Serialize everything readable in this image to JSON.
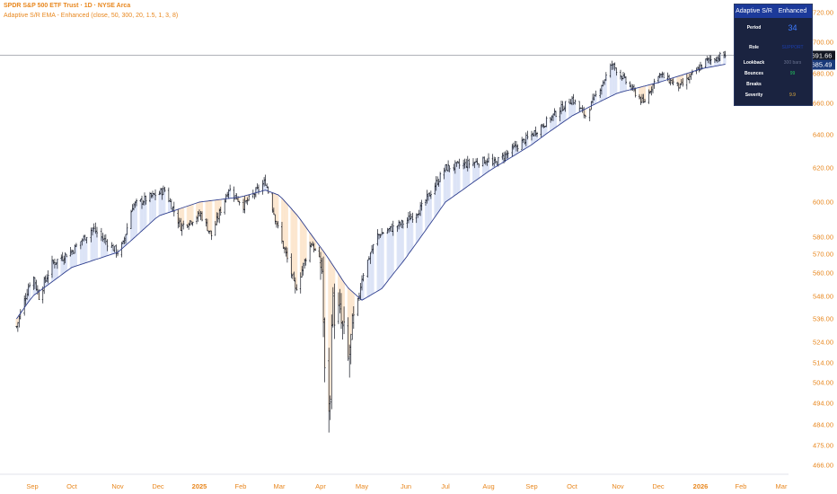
{
  "header": {
    "title": "SPDR S&P 500 ETF Trust · 1D · NYSE Arca",
    "indicator": "Adaptive S/R EMA - Enhanced (close, 50, 300, 20, 1.5, 1, 3, 8)"
  },
  "y_axis_labels": [
    "720.00",
    "700.00",
    "680.00",
    "660.00",
    "640.00",
    "620.00",
    "600.00",
    "580.00",
    "570.00",
    "560.00",
    "548.00",
    "536.00",
    "524.00",
    "514.00",
    "504.00",
    "494.00",
    "484.00",
    "475.00",
    "466.00"
  ],
  "price_tags": {
    "last": "691.66",
    "ema": "685.49"
  },
  "panel": {
    "title": "Adaptive S/R",
    "mode": "Enhanced",
    "rows": {
      "period": {
        "label": "Period",
        "value": "34"
      },
      "role": {
        "label": "Role",
        "value": "SUPPORT"
      },
      "lookback": {
        "label": "Lookback",
        "value": "300 bars"
      },
      "bounces": {
        "label": "Bounces",
        "value": "99"
      },
      "breaks": {
        "label": "Breaks",
        "value": ""
      },
      "severity": {
        "label": "Severity",
        "value": "9.9"
      }
    }
  },
  "colors": {
    "axis_text": "#e8871e",
    "ema_line": "#2f3f8f",
    "fill_support": "#d6dff5",
    "fill_resistance": "#fbe2c7",
    "bars": "#131722",
    "panel_bg": "#1a2340",
    "panel_header": "#1c3a9a"
  },
  "chart_data": {
    "type": "line",
    "title": "SPDR S&P 500 ETF Trust · 1D · NYSE Arca",
    "ylim": [
      466,
      725
    ],
    "x_ticks": [
      {
        "label": "Sep",
        "bold": false
      },
      {
        "label": "Oct",
        "bold": false
      },
      {
        "label": "Nov",
        "bold": false
      },
      {
        "label": "Dec",
        "bold": false
      },
      {
        "label": "2025",
        "bold": true
      },
      {
        "label": "Feb",
        "bold": false
      },
      {
        "label": "Mar",
        "bold": false
      },
      {
        "label": "Apr",
        "bold": false
      },
      {
        "label": "May",
        "bold": false
      },
      {
        "label": "Jun",
        "bold": false
      },
      {
        "label": "Jul",
        "bold": false
      },
      {
        "label": "Aug",
        "bold": false
      },
      {
        "label": "Sep",
        "bold": false
      },
      {
        "label": "Oct",
        "bold": false
      },
      {
        "label": "Nov",
        "bold": false
      },
      {
        "label": "Dec",
        "bold": false
      },
      {
        "label": "2026",
        "bold": true
      },
      {
        "label": "Feb",
        "bold": false
      },
      {
        "label": "Mar",
        "bold": false
      }
    ],
    "series": [
      {
        "key": "close",
        "x": [
          "2024-08-20",
          "2024-09-01",
          "2024-09-06",
          "2024-09-16",
          "2024-10-01",
          "2024-10-15",
          "2024-11-01",
          "2024-11-05",
          "2024-11-12",
          "2024-12-06",
          "2024-12-18",
          "2025-01-02",
          "2025-01-10",
          "2025-01-23",
          "2025-02-03",
          "2025-02-19",
          "2025-03-01",
          "2025-03-10",
          "2025-03-13",
          "2025-03-25",
          "2025-04-02",
          "2025-04-04",
          "2025-04-08",
          "2025-04-09",
          "2025-04-15",
          "2025-04-21",
          "2025-05-01",
          "2025-05-12",
          "2025-06-01",
          "2025-06-13",
          "2025-07-01",
          "2025-08-01",
          "2025-08-04",
          "2025-09-01",
          "2025-10-01",
          "2025-10-10",
          "2025-10-28",
          "2025-11-20",
          "2025-12-01",
          "2025-12-17",
          "2026-01-05",
          "2026-01-20"
        ],
        "values": [
          532,
          560,
          548,
          565,
          572,
          585,
          571,
          576,
          598,
          607,
          586,
          593,
          581,
          608,
          598,
          612,
          582,
          560,
          551,
          577,
          563,
          505,
          492,
          543,
          536,
          514,
          558,
          581,
          589,
          597,
          620,
          625,
          622,
          640,
          663,
          652,
          686,
          660,
          680,
          671,
          688,
          692
        ]
      },
      {
        "key": "ema",
        "x": [
          "2024-08-20",
          "2024-09-01",
          "2024-10-01",
          "2024-11-01",
          "2024-12-01",
          "2025-01-01",
          "2025-02-01",
          "2025-02-19",
          "2025-03-01",
          "2025-03-15",
          "2025-04-01",
          "2025-04-20",
          "2025-05-01",
          "2025-05-15",
          "2025-06-01",
          "2025-07-01",
          "2025-08-01",
          "2025-09-01",
          "2025-10-01",
          "2025-11-01",
          "2025-12-01",
          "2026-01-01",
          "2026-01-20"
        ],
        "values": [
          536,
          548,
          563,
          571,
          592,
          600,
          603,
          607,
          604,
          592,
          574,
          553,
          546,
          552,
          568,
          600,
          618,
          634,
          652,
          667,
          674,
          683,
          686
        ]
      }
    ]
  }
}
